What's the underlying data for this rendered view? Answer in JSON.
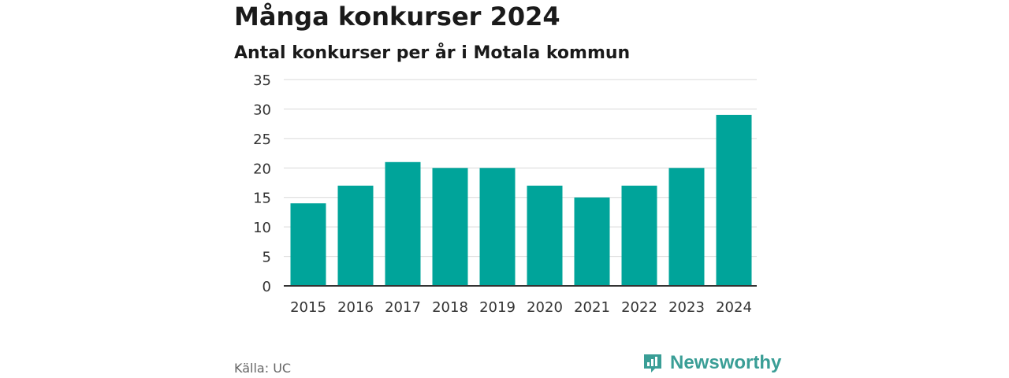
{
  "header": {
    "title": "Många konkurser 2024",
    "subtitle": "Antal konkurser per år i Motala kommun"
  },
  "footer": {
    "source": "Källa: UC",
    "brand": "Newsworthy"
  },
  "colors": {
    "bar": "#00a49a",
    "brand": "#3a9e96",
    "grid": "#d9d9d9",
    "axis": "#333333"
  },
  "chart_data": {
    "type": "bar",
    "categories": [
      "2015",
      "2016",
      "2017",
      "2018",
      "2019",
      "2020",
      "2021",
      "2022",
      "2023",
      "2024"
    ],
    "values": [
      14,
      17,
      21,
      20,
      20,
      17,
      15,
      17,
      20,
      29
    ],
    "yticks": [
      "0",
      "5",
      "10",
      "15",
      "20",
      "25",
      "30",
      "35"
    ],
    "ylim": [
      0,
      35
    ],
    "grid": true,
    "legend": "none"
  }
}
